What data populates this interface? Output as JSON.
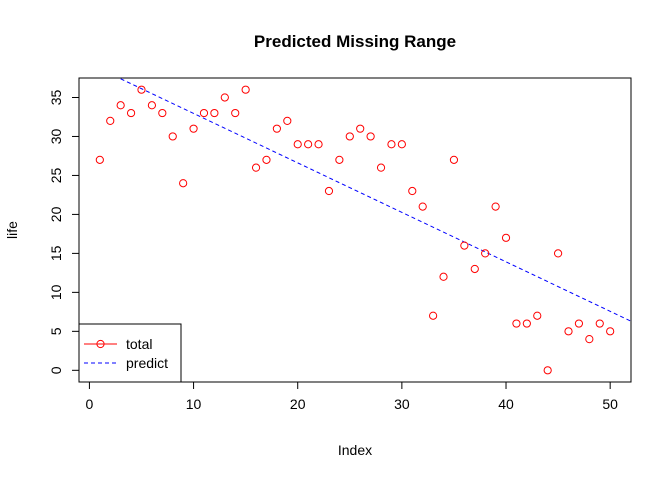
{
  "chart_data": {
    "type": "scatter",
    "title": "Predicted Missing Range",
    "xlabel": "Index",
    "ylabel": "life",
    "xlim": [
      -1,
      52
    ],
    "ylim": [
      -1.5,
      37.5
    ],
    "xticks": [
      0,
      10,
      20,
      30,
      40,
      50
    ],
    "yticks": [
      0,
      5,
      10,
      15,
      20,
      25,
      30,
      35
    ],
    "legend_position": "bottom-left",
    "series": [
      {
        "name": "total",
        "kind": "points",
        "color": "#ff0000",
        "x": [
          1,
          2,
          3,
          4,
          5,
          6,
          7,
          8,
          9,
          10,
          11,
          12,
          13,
          14,
          15,
          16,
          17,
          18,
          19,
          20,
          21,
          22,
          23,
          24,
          25,
          26,
          27,
          28,
          29,
          30,
          31,
          32,
          33,
          34,
          35,
          36,
          37,
          38,
          39,
          40,
          41,
          42,
          43,
          44,
          45,
          46,
          47,
          48,
          49,
          50
        ],
        "y": [
          27,
          32,
          34,
          33,
          36,
          34,
          33,
          30,
          24,
          31,
          33,
          33,
          35,
          33,
          36,
          26,
          27,
          31,
          32,
          29,
          29,
          29,
          23,
          27,
          30,
          31,
          30,
          26,
          29,
          29,
          23,
          21,
          7,
          12,
          27,
          16,
          13,
          15,
          21,
          17,
          6,
          6,
          7,
          0,
          15,
          5,
          6,
          4,
          6,
          5
        ]
      },
      {
        "name": "predict",
        "kind": "line",
        "color": "#0000ff",
        "linestyle": "dashed",
        "x": [
          3,
          52
        ],
        "y": [
          37.4,
          6.3
        ]
      }
    ]
  }
}
